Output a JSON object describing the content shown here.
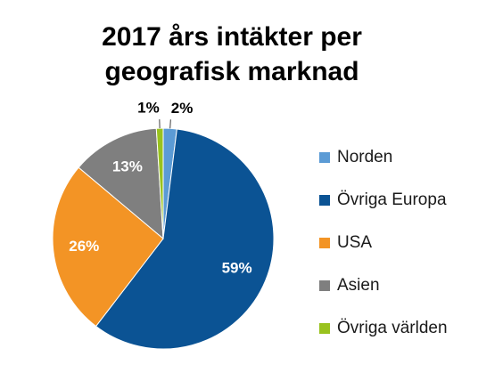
{
  "chart_data": {
    "type": "pie",
    "title": "2017 års intäkter per geografisk marknad",
    "title_lines": [
      "2017 års intäkter per",
      "geografisk marknad"
    ],
    "categories": [
      "Norden",
      "Övriga Europa",
      "USA",
      "Asien",
      "Övriga världen"
    ],
    "values": [
      2,
      59,
      26,
      13,
      1
    ],
    "value_labels": [
      "2%",
      "59%",
      "26%",
      "13%",
      "1%"
    ],
    "colors": [
      "#5b9bd5",
      "#0b5394",
      "#f39425",
      "#7f7f7f",
      "#99c21e"
    ],
    "label_colors": [
      "#000000",
      "#ffffff",
      "#ffffff",
      "#ffffff",
      "#000000"
    ],
    "start_angle_deg": 0,
    "direction": "clockwise",
    "legend_position": "right"
  }
}
